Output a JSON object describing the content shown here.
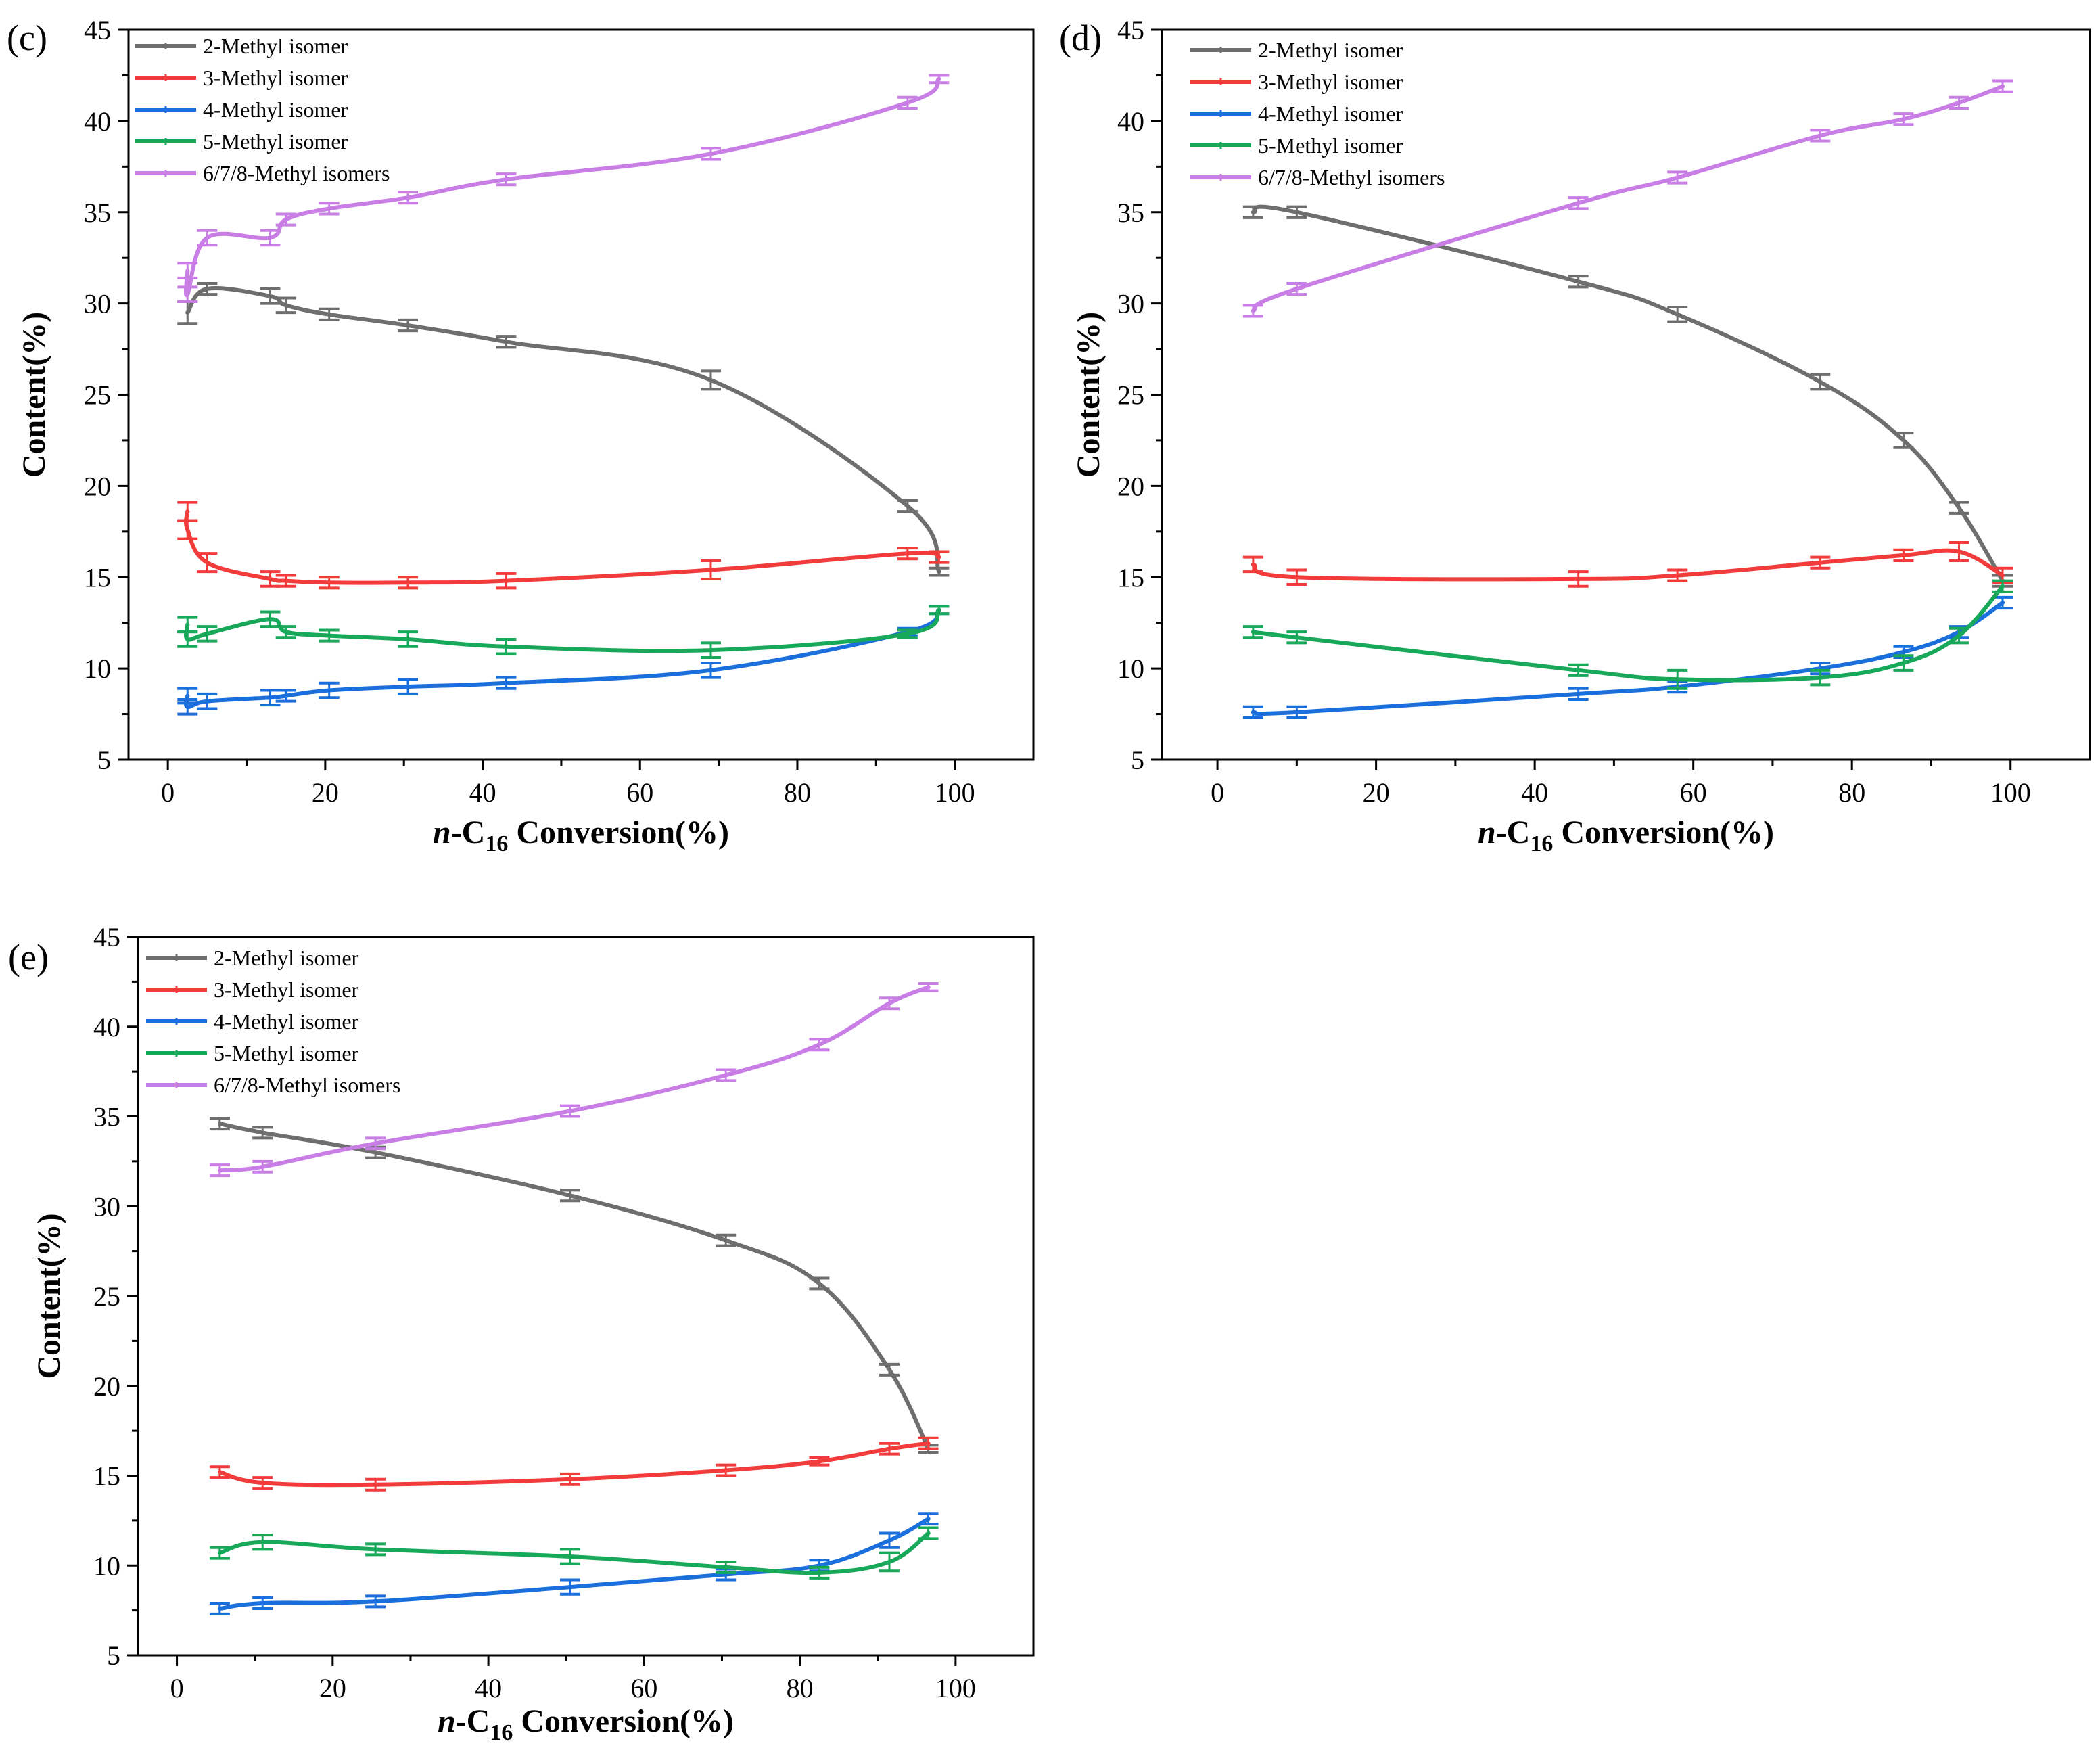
{
  "figure": {
    "xlabel_prefix": "n",
    "xlabel_mid": "-C",
    "xlabel_sub": "16",
    "xlabel_suffix": " Conversion(%)",
    "colors": {
      "2-Methyl isomer": "#6e6e6e",
      "3-Methyl isomer": "#f23c3c",
      "4-Methyl isomer": "#1a6fdc",
      "5-Methyl isomer": "#17a85a",
      "6/7/8-Methyl isomers": "#c97ee6"
    }
  },
  "chart_data": [
    {
      "type": "line",
      "panel_label": "(c)",
      "title": "",
      "xlabel": "n-C16 Conversion(%)",
      "ylabel": "Content(%)",
      "xlim": [
        -5,
        110
      ],
      "ylim": [
        5,
        45
      ],
      "xticks": [
        0,
        20,
        40,
        60,
        80,
        100
      ],
      "yticks": [
        5,
        10,
        15,
        20,
        25,
        30,
        35,
        40,
        45
      ],
      "legend_position": "top-left",
      "series": [
        {
          "name": "2-Methyl isomer",
          "x": [
            2.5,
            5,
            13,
            15,
            20.5,
            30.5,
            43,
            69,
            94,
            98
          ],
          "y": [
            29.5,
            30.8,
            30.4,
            29.9,
            29.4,
            28.8,
            27.9,
            25.8,
            18.9,
            15.3
          ],
          "err": [
            0.6,
            0.3,
            0.4,
            0.4,
            0.3,
            0.3,
            0.3,
            0.5,
            0.3,
            0.2
          ]
        },
        {
          "name": "3-Methyl isomer",
          "x": [
            2.5,
            2.5,
            5,
            13,
            15,
            20.5,
            30.5,
            43,
            69,
            94,
            98
          ],
          "y": [
            18.6,
            17.6,
            15.8,
            14.9,
            14.8,
            14.7,
            14.7,
            14.8,
            15.4,
            16.3,
            16.1
          ],
          "err": [
            0.5,
            0.5,
            0.5,
            0.4,
            0.3,
            0.3,
            0.3,
            0.4,
            0.5,
            0.3,
            0.3
          ]
        },
        {
          "name": "4-Methyl isomer",
          "x": [
            2.5,
            2.5,
            5,
            13,
            15,
            20.5,
            30.5,
            43,
            69,
            94,
            98
          ],
          "y": [
            8.5,
            7.9,
            8.2,
            8.4,
            8.5,
            8.8,
            9.0,
            9.2,
            9.9,
            12.0,
            13.2
          ],
          "err": [
            0.4,
            0.4,
            0.4,
            0.4,
            0.3,
            0.4,
            0.4,
            0.3,
            0.4,
            0.2,
            0.2
          ]
        },
        {
          "name": "5-Methyl isomer",
          "x": [
            2.5,
            2.5,
            5,
            13,
            15,
            20.5,
            30.5,
            43,
            69,
            94,
            98
          ],
          "y": [
            12.4,
            11.6,
            11.9,
            12.7,
            12.0,
            11.8,
            11.6,
            11.2,
            11.0,
            11.9,
            13.2
          ],
          "err": [
            0.4,
            0.4,
            0.4,
            0.4,
            0.3,
            0.3,
            0.4,
            0.4,
            0.4,
            0.2,
            0.2
          ]
        },
        {
          "name": "6/7/8-Methyl isomers",
          "x": [
            2.5,
            2.5,
            5,
            13,
            15,
            20.5,
            30.5,
            43,
            69,
            94,
            98
          ],
          "y": [
            31.8,
            30.5,
            33.6,
            33.6,
            34.6,
            35.2,
            35.8,
            36.8,
            38.2,
            41.0,
            42.3
          ],
          "err": [
            0.4,
            0.4,
            0.4,
            0.4,
            0.3,
            0.3,
            0.3,
            0.3,
            0.3,
            0.3,
            0.2
          ]
        }
      ]
    },
    {
      "type": "line",
      "panel_label": "(d)",
      "title": "",
      "xlabel": "n-C16 Conversion(%)",
      "ylabel": "Content(%)",
      "xlim": [
        -7,
        110
      ],
      "ylim": [
        5,
        45
      ],
      "xticks": [
        0,
        20,
        40,
        60,
        80,
        100
      ],
      "yticks": [
        5,
        10,
        15,
        20,
        25,
        30,
        35,
        40,
        45
      ],
      "legend_position": "top-left",
      "series": [
        {
          "name": "2-Methyl isomer",
          "x": [
            4.5,
            10,
            45.5,
            58,
            76,
            86.5,
            93.5,
            99
          ],
          "y": [
            35.0,
            35.0,
            31.2,
            29.4,
            25.7,
            22.5,
            18.8,
            14.8
          ],
          "err": [
            0.3,
            0.3,
            0.3,
            0.4,
            0.4,
            0.4,
            0.3,
            0.3
          ]
        },
        {
          "name": "3-Methyl isomer",
          "x": [
            4.5,
            10,
            45.5,
            58,
            76,
            86.5,
            93.5,
            99
          ],
          "y": [
            15.7,
            15.0,
            14.9,
            15.1,
            15.8,
            16.2,
            16.4,
            15.1
          ],
          "err": [
            0.4,
            0.4,
            0.4,
            0.3,
            0.3,
            0.3,
            0.5,
            0.4
          ]
        },
        {
          "name": "4-Methyl isomer",
          "x": [
            4.5,
            10,
            45.5,
            58,
            76,
            86.5,
            93.5,
            99
          ],
          "y": [
            7.6,
            7.6,
            8.6,
            9.0,
            10.0,
            10.9,
            12.0,
            13.6
          ],
          "err": [
            0.3,
            0.3,
            0.3,
            0.3,
            0.3,
            0.3,
            0.3,
            0.3
          ]
        },
        {
          "name": "5-Methyl isomer",
          "x": [
            4.5,
            10,
            45.5,
            58,
            76,
            86.5,
            93.5,
            99
          ],
          "y": [
            12.0,
            11.7,
            9.9,
            9.4,
            9.5,
            10.3,
            11.8,
            14.5
          ],
          "err": [
            0.3,
            0.3,
            0.3,
            0.5,
            0.4,
            0.4,
            0.4,
            0.3
          ]
        },
        {
          "name": "6/7/8-Methyl isomers",
          "x": [
            4.5,
            10,
            45.5,
            58,
            76,
            86.5,
            93.5,
            99
          ],
          "y": [
            29.6,
            30.8,
            35.5,
            36.9,
            39.2,
            40.1,
            41.0,
            41.9
          ],
          "err": [
            0.3,
            0.3,
            0.3,
            0.3,
            0.3,
            0.3,
            0.3,
            0.3
          ]
        }
      ]
    },
    {
      "type": "line",
      "panel_label": "(e)",
      "title": "",
      "xlabel": "n-C16 Conversion(%)",
      "ylabel": "Content(%)",
      "xlim": [
        -5,
        110
      ],
      "ylim": [
        5,
        45
      ],
      "xticks": [
        0,
        20,
        40,
        60,
        80,
        100
      ],
      "yticks": [
        5,
        10,
        15,
        20,
        25,
        30,
        35,
        40,
        45
      ],
      "legend_position": "top-left",
      "series": [
        {
          "name": "2-Methyl isomer",
          "x": [
            5.5,
            11,
            25.5,
            50.5,
            70.5,
            82.5,
            91.5,
            96.5
          ],
          "y": [
            34.6,
            34.1,
            33.0,
            30.6,
            28.1,
            25.7,
            20.9,
            16.5
          ],
          "err": [
            0.3,
            0.3,
            0.3,
            0.3,
            0.3,
            0.3,
            0.3,
            0.2
          ]
        },
        {
          "name": "3-Methyl isomer",
          "x": [
            5.5,
            11,
            25.5,
            50.5,
            70.5,
            82.5,
            91.5,
            96.5
          ],
          "y": [
            15.2,
            14.6,
            14.5,
            14.8,
            15.3,
            15.8,
            16.5,
            16.8
          ],
          "err": [
            0.3,
            0.3,
            0.3,
            0.3,
            0.3,
            0.2,
            0.3,
            0.3
          ]
        },
        {
          "name": "4-Methyl isomer",
          "x": [
            5.5,
            11,
            25.5,
            50.5,
            70.5,
            82.5,
            91.5,
            96.5
          ],
          "y": [
            7.6,
            7.9,
            8.0,
            8.8,
            9.5,
            10.0,
            11.4,
            12.6
          ],
          "err": [
            0.3,
            0.3,
            0.3,
            0.4,
            0.3,
            0.3,
            0.4,
            0.3
          ]
        },
        {
          "name": "5-Methyl isomer",
          "x": [
            5.5,
            11,
            25.5,
            50.5,
            70.5,
            82.5,
            91.5,
            96.5
          ],
          "y": [
            10.7,
            11.3,
            10.9,
            10.5,
            9.9,
            9.6,
            10.2,
            11.8
          ],
          "err": [
            0.3,
            0.4,
            0.3,
            0.4,
            0.3,
            0.3,
            0.5,
            0.3
          ]
        },
        {
          "name": "6/7/8-Methyl isomers",
          "x": [
            5.5,
            11,
            25.5,
            50.5,
            70.5,
            82.5,
            91.5,
            96.5
          ],
          "y": [
            32.0,
            32.2,
            33.5,
            35.3,
            37.3,
            39.0,
            41.3,
            42.2
          ],
          "err": [
            0.3,
            0.3,
            0.3,
            0.3,
            0.3,
            0.3,
            0.3,
            0.2
          ]
        }
      ]
    }
  ]
}
